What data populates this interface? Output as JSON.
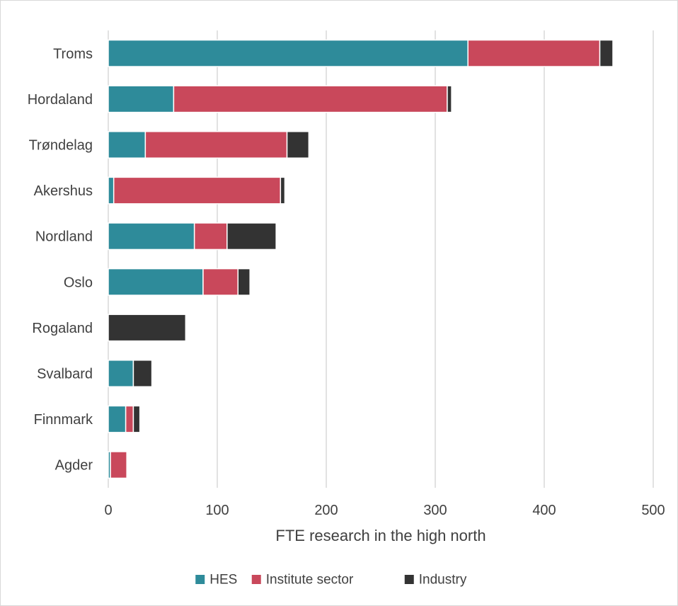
{
  "chart_data": {
    "type": "bar",
    "orientation": "horizontal",
    "stacked": true,
    "categories": [
      "Troms",
      "Hordaland",
      "Trøndelag",
      "Akershus",
      "Nordland",
      "Oslo",
      "Rogaland",
      "Svalbard",
      "Finnmark",
      "Agder"
    ],
    "series": [
      {
        "name": "HES",
        "color": "#2e8b9a",
        "values": [
          330,
          60,
          34,
          5,
          79,
          87,
          0,
          23,
          16,
          2
        ]
      },
      {
        "name": "Institute sector",
        "color": "#c9485b",
        "values": [
          121,
          251,
          130,
          153,
          30,
          32,
          0,
          0,
          7,
          15
        ]
      },
      {
        "name": "Industry",
        "color": "#333333",
        "values": [
          12,
          4,
          20,
          4,
          45,
          11,
          71,
          17,
          6,
          0
        ]
      }
    ],
    "xlabel": "FTE research in the high north",
    "ylabel": "",
    "xlim": [
      0,
      500
    ],
    "xticks": [
      0,
      100,
      200,
      300,
      400,
      500
    ],
    "grid": true,
    "legend_position": "bottom"
  }
}
